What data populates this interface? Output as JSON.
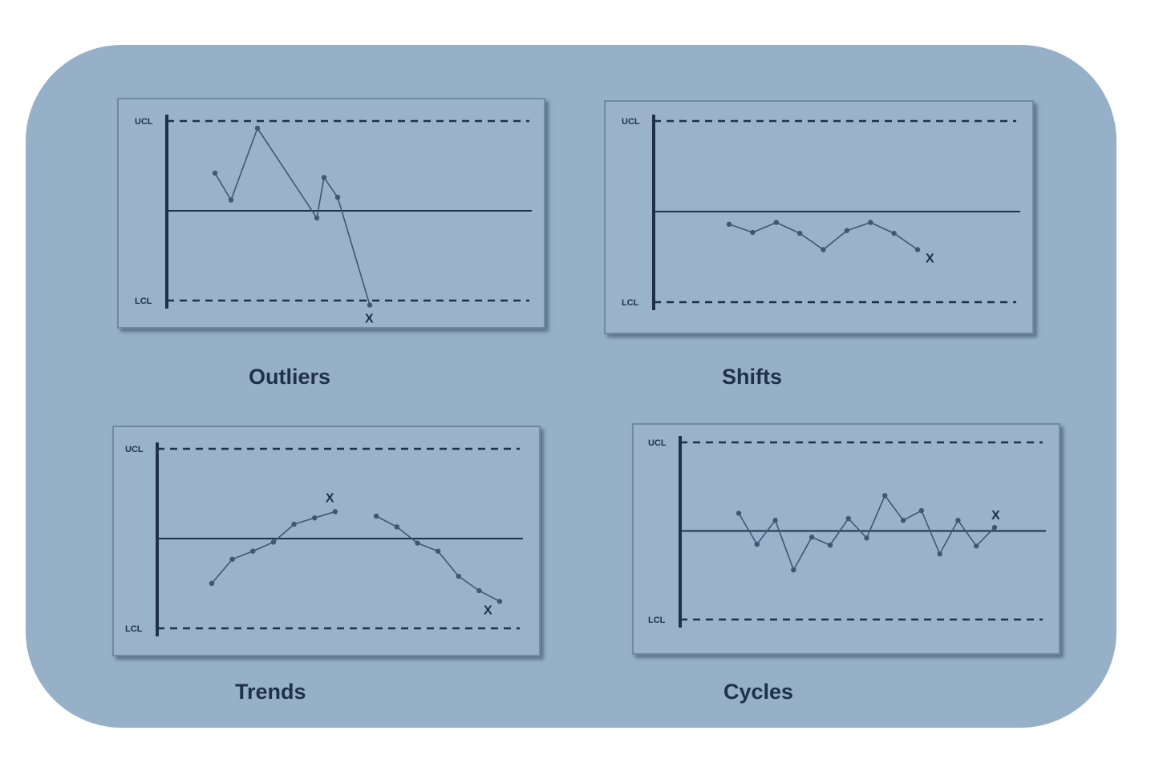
{
  "colors": {
    "background": "#96b0c8",
    "panel": "#9ab3cb",
    "line": "#1e3148",
    "point": "#3f5873"
  },
  "chart_data": [
    {
      "type": "line",
      "title": "Outliers",
      "ucl_label": "UCL",
      "lcl_label": "LCL",
      "ucl": 1.0,
      "lcl": -1.0,
      "center": 0,
      "ylim": [
        -1.15,
        1.15
      ],
      "points": [
        [
          1,
          0.42
        ],
        [
          2,
          0.12
        ],
        [
          3,
          0.92
        ],
        [
          6,
          -0.08
        ],
        [
          6.5,
          0.37
        ],
        [
          7,
          0.15
        ],
        [
          8.5,
          -1.05
        ]
      ],
      "marker_text": "X",
      "marker_at": [
        8.5,
        -1.05
      ]
    },
    {
      "type": "line",
      "title": "Shifts",
      "ucl_label": "UCL",
      "lcl_label": "LCL",
      "ucl": 1.0,
      "lcl": -1.0,
      "center": 0,
      "ylim": [
        -1.15,
        1.15
      ],
      "points": [
        [
          1,
          -0.14
        ],
        [
          2,
          -0.23
        ],
        [
          3,
          -0.12
        ],
        [
          4,
          -0.24
        ],
        [
          5,
          -0.42
        ],
        [
          6,
          -0.21
        ],
        [
          7,
          -0.12
        ],
        [
          8,
          -0.24
        ],
        [
          9,
          -0.42
        ]
      ],
      "marker_text": "X",
      "marker_at": [
        9,
        -0.42
      ]
    },
    {
      "type": "line",
      "title": "Trends",
      "ucl_label": "UCL",
      "lcl_label": "LCL",
      "ucl": 1.0,
      "lcl": -1.0,
      "center": 0,
      "ylim": [
        -1.15,
        1.15
      ],
      "series": [
        {
          "values": [
            [
              1,
              -0.5
            ],
            [
              2,
              -0.23
            ],
            [
              3,
              -0.14
            ],
            [
              4,
              -0.04
            ],
            [
              5,
              0.16
            ],
            [
              6,
              0.23
            ],
            [
              7,
              0.3
            ]
          ]
        },
        {
          "values": [
            [
              9,
              0.25
            ],
            [
              10,
              0.13
            ],
            [
              11,
              -0.05
            ],
            [
              12,
              -0.14
            ],
            [
              13,
              -0.42
            ],
            [
              14,
              -0.58
            ],
            [
              15,
              -0.7
            ]
          ]
        }
      ],
      "marker_texts": [
        "X",
        "X"
      ],
      "marker_at": [
        [
          7,
          0.3
        ],
        [
          15,
          -0.7
        ]
      ]
    },
    {
      "type": "line",
      "title": "Cycles",
      "ucl_label": "UCL",
      "lcl_label": "LCL",
      "ucl": 1.0,
      "lcl": -1.0,
      "center": 0,
      "ylim": [
        -1.15,
        1.15
      ],
      "points": [
        [
          1,
          0.2
        ],
        [
          2,
          -0.15
        ],
        [
          3,
          0.12
        ],
        [
          4,
          -0.44
        ],
        [
          5,
          -0.07
        ],
        [
          6,
          -0.16
        ],
        [
          7,
          0.14
        ],
        [
          8,
          -0.08
        ],
        [
          9,
          0.4
        ],
        [
          10,
          0.12
        ],
        [
          11,
          0.23
        ],
        [
          12,
          -0.26
        ],
        [
          13,
          0.12
        ],
        [
          14,
          -0.17
        ],
        [
          15,
          0.04
        ]
      ],
      "marker_text": "X",
      "marker_at": [
        15,
        0.04
      ]
    }
  ]
}
